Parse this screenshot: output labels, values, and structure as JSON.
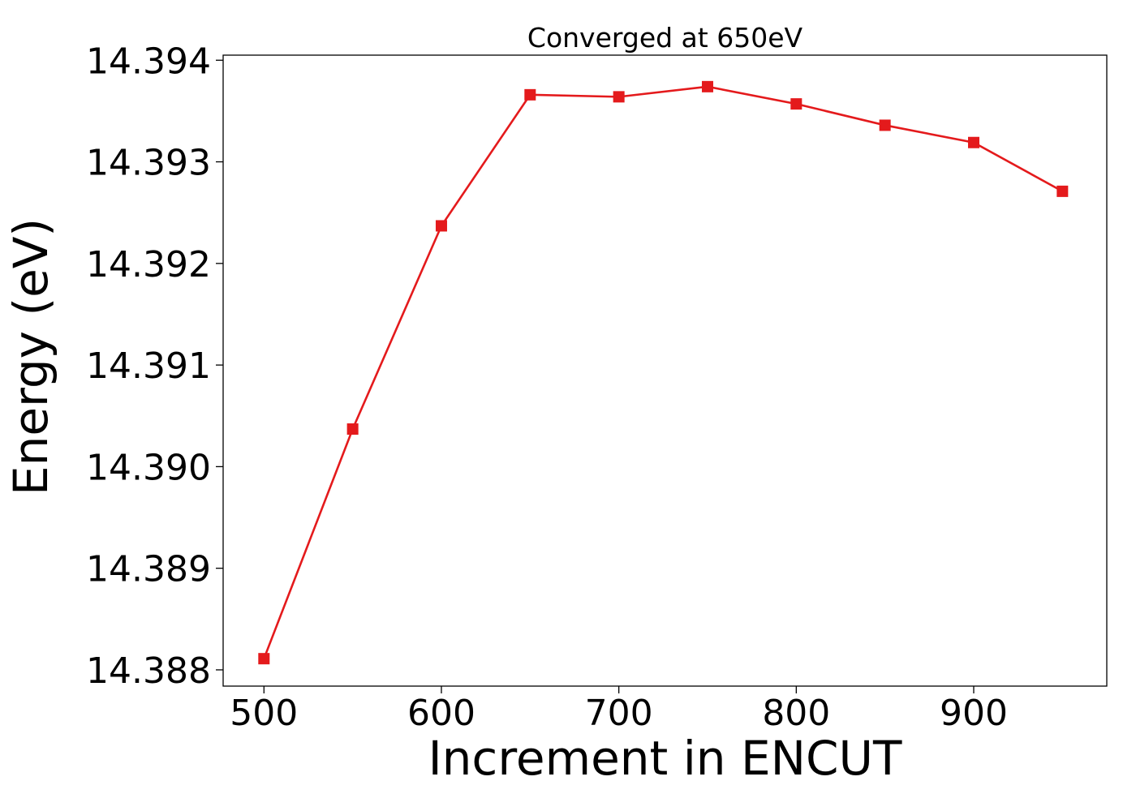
{
  "chart_data": {
    "type": "line",
    "title": "Converged at 650eV",
    "xlabel": "Increment in ENCUT",
    "ylabel": "Energy (eV)",
    "xlim": [
      477,
      975
    ],
    "ylim": [
      14.38784,
      14.39405
    ],
    "xticks": [
      500,
      600,
      700,
      800,
      900
    ],
    "xtick_labels": [
      "500",
      "600",
      "700",
      "800",
      "900"
    ],
    "yticks": [
      14.388,
      14.389,
      14.39,
      14.391,
      14.392,
      14.393,
      14.394
    ],
    "ytick_labels": [
      "14.388",
      "14.389",
      "14.390",
      "14.391",
      "14.392",
      "14.393",
      "14.394"
    ],
    "grid": false,
    "series": [
      {
        "color": "#e41a1c",
        "marker": "square",
        "x": [
          500,
          550,
          600,
          650,
          700,
          750,
          800,
          850,
          900,
          950
        ],
        "y": [
          14.38811,
          14.39037,
          14.39237,
          14.39366,
          14.39364,
          14.39374,
          14.39357,
          14.39336,
          14.39319,
          14.39271
        ]
      }
    ]
  }
}
